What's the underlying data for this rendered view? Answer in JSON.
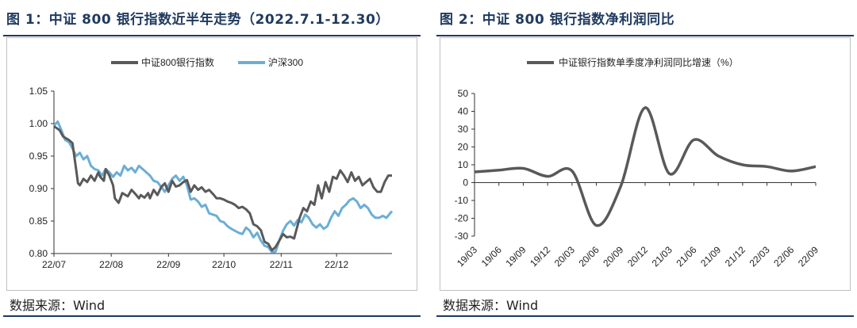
{
  "panel1": {
    "title": "图 1：中证 800 银行指数近半年走势（2022.7.1-12.30）",
    "source": "数据来源：Wind"
  },
  "panel2": {
    "title": "图 2：中证 800 银行指数净利润同比",
    "source": "数据来源：Wind"
  },
  "colors": {
    "title": "#1f3a5f",
    "bank": "#595959",
    "hs300": "#6baed6",
    "line2": "#595959"
  },
  "chart_data": [
    {
      "type": "line",
      "title": "",
      "xlabel": "",
      "ylabel": "",
      "ylim": [
        0.8,
        1.05
      ],
      "yticks": [
        0.8,
        0.85,
        0.9,
        0.95,
        1.0,
        1.05
      ],
      "ytick_labels": [
        "0.80",
        "0.85",
        "0.90",
        "0.95",
        "1.00",
        "1.05"
      ],
      "xlim": [
        0,
        183
      ],
      "xticks": [
        0,
        31,
        62,
        92,
        123,
        153
      ],
      "xtick_labels": [
        "22/07",
        "22/08",
        "22/09",
        "22/10",
        "22/11",
        "22/12"
      ],
      "grid": false,
      "legend": "top-center",
      "series": [
        {
          "name": "中证800银行指数",
          "x": [
            0,
            3,
            5,
            8,
            10,
            12,
            13,
            14,
            16,
            18,
            20,
            22,
            24,
            25,
            27,
            28,
            30,
            32,
            33,
            35,
            37,
            40,
            42,
            44,
            46,
            47,
            49,
            51,
            52,
            54,
            56,
            58,
            60,
            62,
            64,
            66,
            68,
            70,
            72,
            74,
            76,
            78,
            80,
            82,
            84,
            86,
            88,
            90,
            92,
            94,
            96,
            98,
            100,
            102,
            104,
            106,
            108,
            110,
            112,
            114,
            116,
            118,
            120,
            122,
            124,
            126,
            128,
            130,
            133,
            135,
            137,
            139,
            141,
            143,
            145,
            147,
            149,
            151,
            153,
            155,
            157,
            159,
            161,
            163,
            165,
            167,
            169,
            171,
            173,
            175,
            177,
            179,
            181,
            183
          ],
          "values": [
            0.996,
            0.99,
            0.98,
            0.975,
            0.97,
            0.93,
            0.908,
            0.905,
            0.915,
            0.91,
            0.92,
            0.912,
            0.925,
            0.918,
            0.912,
            0.93,
            0.92,
            0.905,
            0.885,
            0.878,
            0.893,
            0.888,
            0.898,
            0.892,
            0.885,
            0.89,
            0.886,
            0.893,
            0.885,
            0.898,
            0.89,
            0.902,
            0.908,
            0.895,
            0.912,
            0.903,
            0.905,
            0.91,
            0.913,
            0.895,
            0.905,
            0.898,
            0.902,
            0.895,
            0.898,
            0.892,
            0.885,
            0.885,
            0.883,
            0.88,
            0.878,
            0.875,
            0.87,
            0.872,
            0.868,
            0.862,
            0.845,
            0.842,
            0.836,
            0.818,
            0.815,
            0.805,
            0.81,
            0.82,
            0.83,
            0.825,
            0.826,
            0.823,
            0.855,
            0.87,
            0.865,
            0.88,
            0.875,
            0.905,
            0.885,
            0.91,
            0.895,
            0.918,
            0.915,
            0.928,
            0.92,
            0.91,
            0.925,
            0.912,
            0.918,
            0.905,
            0.91,
            0.915,
            0.902,
            0.895,
            0.895,
            0.91,
            0.92,
            0.92
          ]
        },
        {
          "name": "沪深300",
          "x": [
            0,
            2,
            4,
            6,
            8,
            10,
            12,
            14,
            16,
            18,
            20,
            22,
            24,
            26,
            28,
            30,
            32,
            34,
            36,
            38,
            40,
            42,
            44,
            46,
            48,
            50,
            52,
            54,
            56,
            58,
            60,
            62,
            64,
            66,
            68,
            70,
            72,
            74,
            76,
            78,
            80,
            82,
            84,
            86,
            88,
            90,
            92,
            94,
            96,
            98,
            100,
            102,
            104,
            106,
            108,
            110,
            112,
            114,
            116,
            118,
            120,
            122,
            124,
            126,
            128,
            130,
            132,
            134,
            136,
            138,
            140,
            142,
            144,
            146,
            148,
            150,
            152,
            154,
            156,
            158,
            160,
            162,
            164,
            166,
            168,
            170,
            172,
            174,
            176,
            178,
            180,
            182,
            183
          ],
          "values": [
            0.997,
            1.003,
            0.99,
            0.975,
            0.972,
            0.962,
            0.95,
            0.955,
            0.945,
            0.95,
            0.935,
            0.93,
            0.928,
            0.92,
            0.93,
            0.925,
            0.918,
            0.925,
            0.92,
            0.935,
            0.928,
            0.932,
            0.925,
            0.935,
            0.93,
            0.925,
            0.92,
            0.912,
            0.91,
            0.903,
            0.895,
            0.905,
            0.915,
            0.92,
            0.912,
            0.918,
            0.905,
            0.883,
            0.885,
            0.88,
            0.872,
            0.875,
            0.862,
            0.86,
            0.858,
            0.85,
            0.848,
            0.842,
            0.838,
            0.835,
            0.832,
            0.83,
            0.84,
            0.835,
            0.825,
            0.832,
            0.82,
            0.812,
            0.81,
            0.802,
            0.803,
            0.82,
            0.835,
            0.845,
            0.85,
            0.843,
            0.852,
            0.848,
            0.86,
            0.855,
            0.845,
            0.84,
            0.845,
            0.838,
            0.842,
            0.855,
            0.865,
            0.858,
            0.87,
            0.875,
            0.882,
            0.885,
            0.88,
            0.87,
            0.875,
            0.87,
            0.86,
            0.855,
            0.855,
            0.858,
            0.855,
            0.862,
            0.865
          ]
        }
      ]
    },
    {
      "type": "line",
      "title": "",
      "xlabel": "",
      "ylabel": "",
      "ylim": [
        -30,
        50
      ],
      "yticks": [
        -30,
        -20,
        -10,
        0,
        10,
        20,
        30,
        40,
        50
      ],
      "ytick_labels": [
        "-30",
        "-20",
        "-10",
        "0",
        "10",
        "20",
        "30",
        "40",
        "50"
      ],
      "categories": [
        "19/03",
        "19/06",
        "19/09",
        "19/12",
        "20/03",
        "20/06",
        "20/09",
        "20/12",
        "21/03",
        "21/06",
        "21/09",
        "21/12",
        "22/03",
        "22/06",
        "22/09"
      ],
      "grid": false,
      "legend": "top-center",
      "series": [
        {
          "name": "中证银行指数单季度净利润同比增速（%）",
          "values": [
            6,
            7,
            8,
            3.5,
            6.5,
            -24,
            -2,
            42,
            5,
            24,
            15,
            10,
            9,
            6.5,
            9
          ]
        }
      ]
    }
  ]
}
